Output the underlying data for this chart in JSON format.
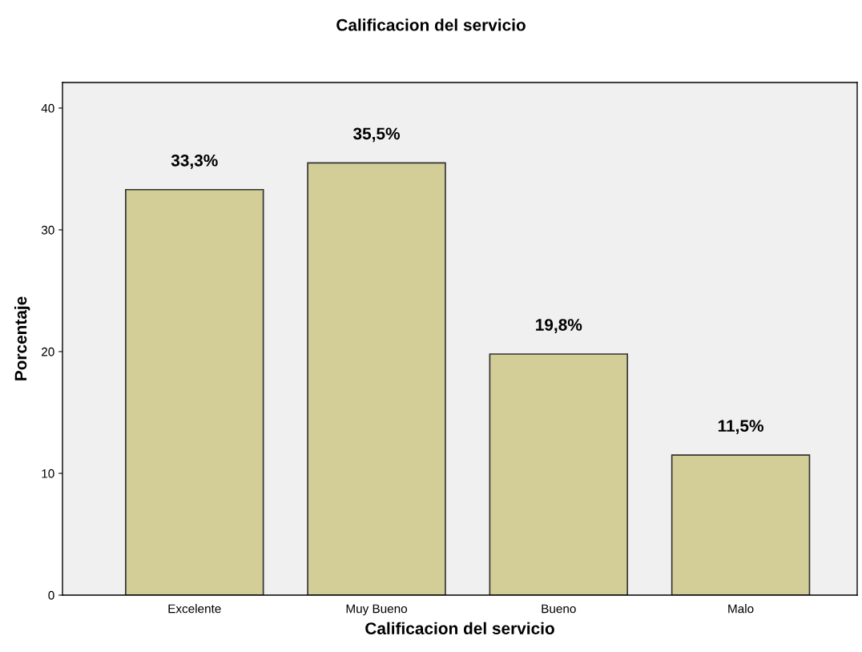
{
  "chart_data": {
    "type": "bar",
    "title": "Calificacion del servicio",
    "xlabel": "Calificacion del servicio",
    "ylabel": "Porcentaje",
    "categories": [
      "Excelente",
      "Muy Bueno",
      "Bueno",
      "Malo"
    ],
    "values": [
      33.3,
      35.5,
      19.8,
      11.5
    ],
    "value_labels": [
      "33,3%",
      "35,5%",
      "19,8%",
      "11,5%"
    ],
    "color": "#d3ce97",
    "ylim": [
      0,
      42.1
    ],
    "yticks": [
      0,
      10,
      20,
      30,
      40
    ],
    "grid": false,
    "legend": false
  }
}
